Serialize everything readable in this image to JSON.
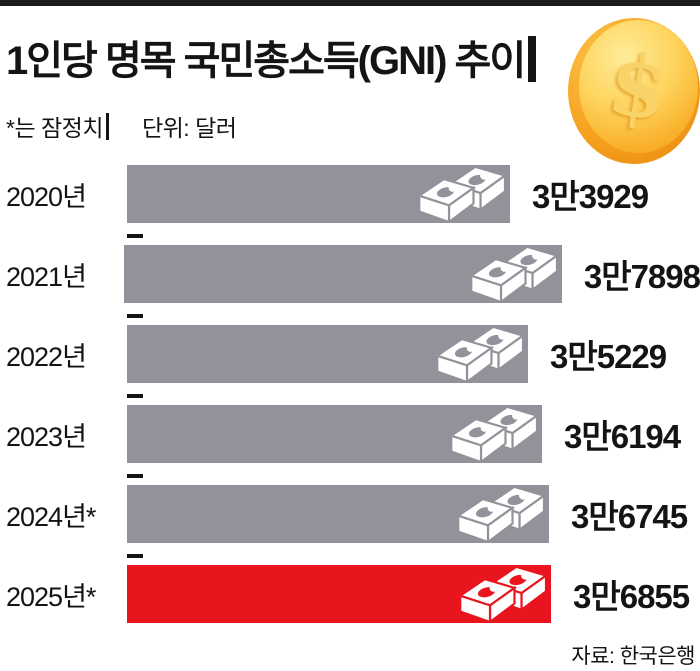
{
  "header": {
    "title": "1인당 명목 국민총소득(GNI) 추이",
    "note": "*는 잠정치",
    "unit": "단위: 달러",
    "coin_symbol": "$"
  },
  "chart_data": {
    "type": "bar",
    "orientation": "horizontal",
    "title": "1인당 명목 국민총소득(GNI) 추이",
    "footnote": "*는 잠정치",
    "unit_label": "단위: 달러",
    "source": "자료: 한국은행",
    "categories": [
      "2020년",
      "2021년",
      "2022년",
      "2023년",
      "2024년*",
      "2025년*"
    ],
    "values": [
      33929,
      37898,
      35229,
      36194,
      36745,
      36855
    ],
    "value_labels": [
      "3만3929",
      "3만7898",
      "3만5229",
      "3만6194",
      "3만6745",
      "3만6855"
    ],
    "highlight_index": 5,
    "bar_color": "#92939a",
    "highlight_color": "#e8141e",
    "grid": false,
    "legend": false,
    "icons": {
      "bar_end": "money-stacks",
      "header": "gold-dollar-coin"
    }
  },
  "footer": {
    "source": "자료: 한국은행"
  }
}
